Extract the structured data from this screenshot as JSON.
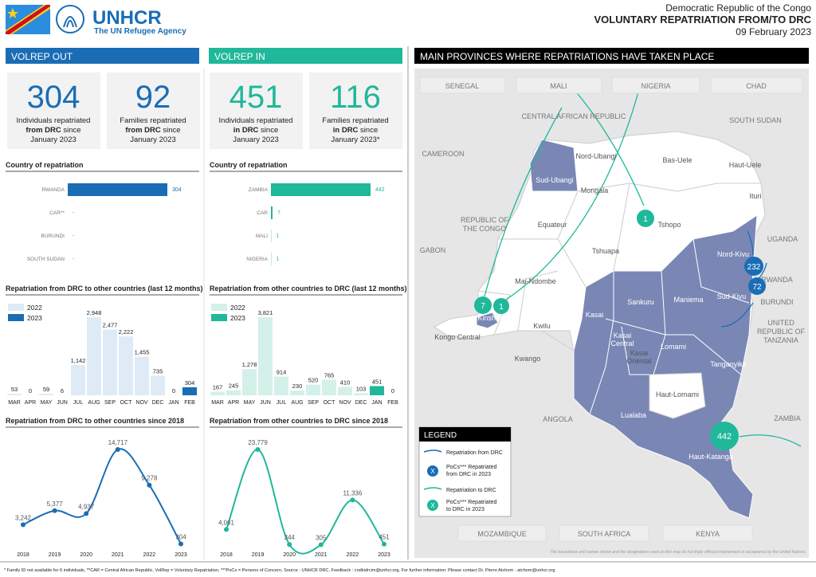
{
  "header": {
    "org": "UNHCR",
    "tagline": "The UN Refugee Agency",
    "country": "Democratic Republic of the Congo",
    "title": "VOLUNTARY REPATRIATION FROM/TO DRC",
    "date": "09 February 2023"
  },
  "out": {
    "title": "VOLREP OUT",
    "kpis": [
      {
        "value": 304,
        "label": [
          "Individuals repatriated",
          "from DRC",
          " since",
          "January 2023"
        ]
      },
      {
        "value": 92,
        "label": [
          "Families repatriated",
          "from DRC",
          " since",
          "January 2023"
        ]
      }
    ]
  },
  "in": {
    "title": "VOLREP IN",
    "kpis": [
      {
        "value": 451,
        "label": [
          "Individuals repatriated",
          "in DRC",
          " since",
          "January 2023"
        ]
      },
      {
        "value": 116,
        "label": [
          "Families repatriated",
          "in DRC",
          " since",
          "January 2023*"
        ]
      }
    ]
  },
  "chart_data": [
    {
      "type": "hbar",
      "title": "Country of repatriation",
      "categories": [
        "RWANDA",
        "CAR**",
        "BURUNDI",
        "SOUTH SUDAN"
      ],
      "values": [
        304,
        null,
        null,
        null
      ],
      "value_labels": [
        "304",
        "-",
        "-",
        "-"
      ],
      "color": "#1a6db5"
    },
    {
      "type": "hbar",
      "title": "Country of repatriation",
      "categories": [
        "ZAMBIA",
        "CAR",
        "MALI",
        "NIGERIA"
      ],
      "values": [
        442,
        7,
        1,
        1
      ],
      "color": "#1fb89a"
    },
    {
      "type": "bar",
      "title": "Repatriation from DRC to other countries (last 12 months)",
      "categories": [
        "MAR",
        "APR",
        "MAY",
        "JUN",
        "JUL",
        "AUG",
        "SEP",
        "OCT",
        "NOV",
        "DEC",
        "JAN",
        "FEB"
      ],
      "series": [
        {
          "name": "2022",
          "color": "#deebf7",
          "values": [
            53,
            0,
            59,
            6,
            1142,
            2948,
            2477,
            2222,
            1455,
            735,
            null,
            null
          ],
          "value_labels": [
            "53",
            "0",
            "59",
            "6",
            "1,142",
            "2,948",
            "2,477",
            "2,222",
            "1,455",
            "735",
            null,
            null
          ]
        },
        {
          "name": "2023",
          "color": "#1a6db5",
          "values": [
            null,
            null,
            null,
            null,
            null,
            null,
            null,
            null,
            null,
            null,
            0,
            304
          ],
          "value_labels": [
            null,
            null,
            null,
            null,
            null,
            null,
            null,
            null,
            null,
            null,
            "0",
            "304"
          ]
        }
      ]
    },
    {
      "type": "bar",
      "title": "Repatriation from other countries to DRC (last 12 months)",
      "categories": [
        "MAR",
        "APR",
        "MAY",
        "JUN",
        "JUL",
        "AUG",
        "SEP",
        "OCT",
        "NOV",
        "DEC",
        "JAN",
        "FEB"
      ],
      "series": [
        {
          "name": "2022",
          "color": "#d3f0e9",
          "values": [
            167,
            245,
            1278,
            3821,
            914,
            230,
            520,
            765,
            410,
            103,
            null,
            null
          ],
          "value_labels": [
            "167",
            "245",
            "1,278",
            "3,821",
            "914",
            "230",
            "520",
            "765",
            "410",
            "103",
            null,
            null
          ]
        },
        {
          "name": "2023",
          "color": "#1fb89a",
          "values": [
            null,
            null,
            null,
            null,
            null,
            null,
            null,
            null,
            null,
            null,
            451,
            0
          ],
          "value_labels": [
            null,
            null,
            null,
            null,
            null,
            null,
            null,
            null,
            null,
            null,
            "451",
            "0"
          ]
        }
      ]
    },
    {
      "type": "line",
      "title": "Repatriation from DRC to other countries since 2018",
      "x": [
        2018,
        2019,
        2020,
        2021,
        2022,
        2023
      ],
      "values": [
        3242,
        5377,
        4937,
        14717,
        9278,
        304
      ],
      "value_labels": [
        "3,242",
        "5,377",
        "4,937",
        "14,717",
        "9,278",
        "304"
      ],
      "color": "#1a6db5"
    },
    {
      "type": "line",
      "title": "Repatriation from other countries to DRC since 2018",
      "x": [
        2018,
        2019,
        2020,
        2021,
        2022,
        2023
      ],
      "values": [
        4061,
        23779,
        344,
        305,
        11336,
        451
      ],
      "value_labels": [
        "4,061",
        "23,779",
        "344",
        "305",
        "11,336",
        "451"
      ],
      "color": "#1fb89a"
    }
  ],
  "map": {
    "title": "MAIN PROVINCES WHERE REPATRIATIONS HAVE TAKEN PLACE",
    "countries": [
      "SENEGAL",
      "MALI",
      "NIGERIA",
      "CHAD",
      "CENTRAL AFRICAN REPUBLIC",
      "SOUTH SUDAN",
      "CAMEROON",
      [
        "REPUBLIC OF",
        "THE CONGO"
      ],
      "GABON",
      "UGANDA",
      "RWANDA",
      "BURUNDI",
      [
        "UNITED",
        "REPUBLIC OF",
        "TANZANIA"
      ],
      "ANGOLA",
      "ZAMBIA",
      "MOZAMBIQUE",
      "SOUTH AFRICA",
      "KENYA"
    ],
    "provinces": [
      "Nord-Ubangi",
      "Bas-Uele",
      "Haut-Uele",
      "Sud-Ubangi",
      "Mongala",
      "Ituri",
      "Tshopo",
      "Equateur",
      "Tshuapa",
      "Nord-Kivu",
      "Mai-Ndombe",
      "Sankuru",
      "Maniema",
      "Sud-Kivu",
      "Kinshasa",
      "Kasai",
      "Kwilu",
      [
        "Kasai",
        "Central"
      ],
      [
        "Kasai",
        "Oriental"
      ],
      "Lomami",
      "Tanganyika",
      "Kongo Central",
      "Kwango",
      "Haut-Lomami",
      "Lualaba",
      "Haut-Katanga"
    ],
    "bubbles": [
      1,
      7,
      1,
      232,
      72,
      442
    ],
    "legend": {
      "title": "LEGEND",
      "symbol": "X",
      "items": [
        [
          "Repatriation from DRC"
        ],
        [
          "PoCs*** Repatriated",
          "from DRC in 2023"
        ],
        [
          "Repatriation to DRC"
        ],
        [
          "PoCs*** Repatriated",
          "to DRC in 2023"
        ]
      ]
    },
    "disclaimer": "The boundaries and names shown and the designations used on this map do not imply official endorsement or acceptance by the United Nations."
  },
  "footer": "* Family ID not available for 6 individuals, **CAR = Central African Republic, VolRep = Voluntary Repatriation, ***PoCs = Persons of Concern, Source : UNHCR DRC, Feedback : codkidrcim@unhcr.org,  For further information: Please contact Dr. Pierre Atchom - atchom@unhcr.org"
}
